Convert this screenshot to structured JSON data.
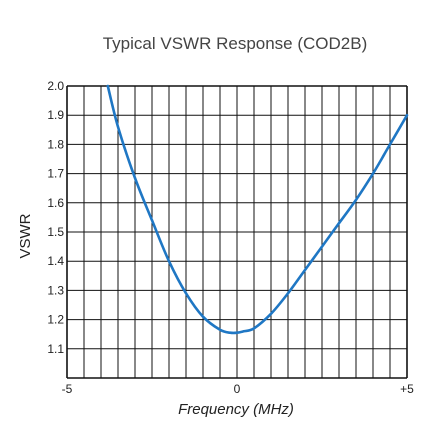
{
  "chart_data": {
    "type": "line",
    "title": "Typical VSWR Response (COD2B)",
    "xlabel": "Frequency (MHz)",
    "ylabel": "VSWR",
    "xlim": [
      -5,
      5
    ],
    "ylim": [
      1.0,
      2.0
    ],
    "x_tick_labels": [
      "-5",
      "0",
      "+5"
    ],
    "y_tick_labels": [
      "2.0",
      "1.9",
      "1.8",
      "1.7",
      "1.6",
      "1.5",
      "1.4",
      "1.3",
      "1.2",
      "1.1"
    ],
    "grid": true,
    "colors": {
      "line": "#1f77c4",
      "grid": "#111111"
    },
    "series": [
      {
        "x": [
          -3.8,
          -3.5,
          -3.0,
          -2.5,
          -2.0,
          -1.5,
          -1.0,
          -0.5,
          -0.2,
          0.0,
          0.2,
          0.5,
          1.0,
          1.5,
          2.0,
          2.5,
          3.0,
          3.5,
          4.0,
          4.5,
          5.0
        ],
        "values": [
          2.0,
          1.86,
          1.685,
          1.54,
          1.4,
          1.29,
          1.21,
          1.165,
          1.155,
          1.155,
          1.16,
          1.17,
          1.22,
          1.29,
          1.37,
          1.45,
          1.53,
          1.61,
          1.7,
          1.8,
          1.9
        ]
      }
    ]
  }
}
